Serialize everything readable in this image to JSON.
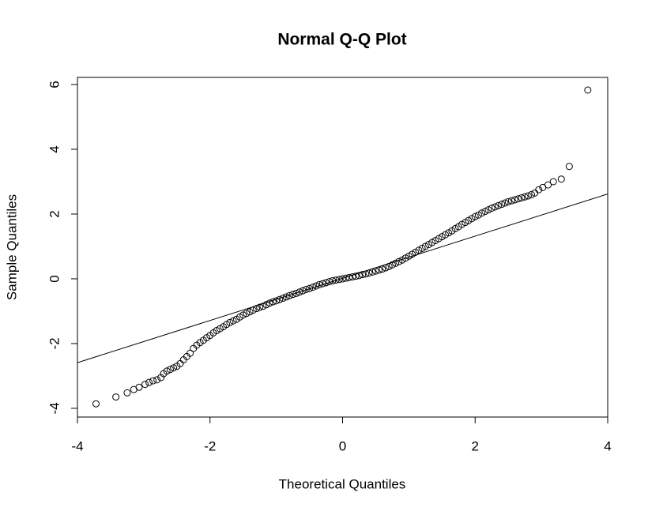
{
  "chart_data": {
    "type": "scatter",
    "title": "Normal Q-Q Plot",
    "x_label": "Theoretical Quantiles",
    "y_label": "Sample Quantiles",
    "xlim": [
      -4,
      4
    ],
    "ylim": [
      -4.27,
      6.22
    ],
    "xticks": [
      -4,
      -2,
      0,
      2,
      4
    ],
    "yticks": [
      -4,
      -2,
      0,
      2,
      4,
      6
    ],
    "color": "#000000",
    "x": [
      -3.72,
      -3.42,
      -3.25,
      -3.15,
      -3.07,
      -2.98,
      -2.92,
      -2.86,
      -2.8,
      -2.74,
      -2.7,
      -2.65,
      -2.6,
      -2.55,
      -2.5,
      -2.45,
      -2.4,
      -2.35,
      -2.3,
      -2.25,
      -2.2,
      -2.15,
      -2.1,
      -2.05,
      -2.0,
      -1.95,
      -1.9,
      -1.85,
      -1.8,
      -1.75,
      -1.7,
      -1.65,
      -1.6,
      -1.55,
      -1.5,
      -1.45,
      -1.4,
      -1.35,
      -1.3,
      -1.25,
      -1.2,
      -1.15,
      -1.1,
      -1.05,
      -1.0,
      -0.95,
      -0.9,
      -0.85,
      -0.8,
      -0.75,
      -0.7,
      -0.65,
      -0.6,
      -0.55,
      -0.5,
      -0.45,
      -0.4,
      -0.35,
      -0.3,
      -0.25,
      -0.2,
      -0.15,
      -0.1,
      -0.05,
      0,
      0.05,
      0.1,
      0.15,
      0.2,
      0.25,
      0.3,
      0.35,
      0.4,
      0.45,
      0.5,
      0.55,
      0.6,
      0.65,
      0.7,
      0.75,
      0.8,
      0.85,
      0.9,
      0.95,
      1.0,
      1.05,
      1.1,
      1.15,
      1.2,
      1.25,
      1.3,
      1.35,
      1.4,
      1.45,
      1.5,
      1.55,
      1.6,
      1.65,
      1.7,
      1.75,
      1.8,
      1.85,
      1.9,
      1.95,
      2.0,
      2.05,
      2.1,
      2.15,
      2.2,
      2.25,
      2.3,
      2.35,
      2.4,
      2.45,
      2.5,
      2.55,
      2.6,
      2.65,
      2.7,
      2.75,
      2.8,
      2.85,
      2.9,
      2.96,
      3.02,
      3.1,
      3.18,
      3.3,
      3.42,
      3.7
    ],
    "y": [
      -3.86,
      -3.65,
      -3.52,
      -3.42,
      -3.35,
      -3.26,
      -3.2,
      -3.15,
      -3.12,
      -3.05,
      -2.93,
      -2.85,
      -2.8,
      -2.75,
      -2.7,
      -2.62,
      -2.5,
      -2.4,
      -2.3,
      -2.15,
      -2.05,
      -1.97,
      -1.9,
      -1.82,
      -1.75,
      -1.67,
      -1.6,
      -1.54,
      -1.48,
      -1.41,
      -1.35,
      -1.3,
      -1.25,
      -1.18,
      -1.12,
      -1.07,
      -1.02,
      -0.97,
      -0.92,
      -0.88,
      -0.85,
      -0.8,
      -0.75,
      -0.71,
      -0.68,
      -0.64,
      -0.6,
      -0.56,
      -0.52,
      -0.48,
      -0.45,
      -0.41,
      -0.37,
      -0.33,
      -0.3,
      -0.26,
      -0.22,
      -0.18,
      -0.15,
      -0.12,
      -0.09,
      -0.06,
      -0.04,
      -0.02,
      0,
      0.02,
      0.04,
      0.06,
      0.08,
      0.1,
      0.13,
      0.15,
      0.18,
      0.21,
      0.24,
      0.27,
      0.3,
      0.34,
      0.38,
      0.43,
      0.48,
      0.53,
      0.58,
      0.64,
      0.7,
      0.76,
      0.82,
      0.88,
      0.94,
      1.0,
      1.06,
      1.12,
      1.18,
      1.24,
      1.3,
      1.36,
      1.42,
      1.48,
      1.55,
      1.61,
      1.68,
      1.74,
      1.8,
      1.86,
      1.92,
      1.97,
      2.03,
      2.08,
      2.13,
      2.18,
      2.22,
      2.26,
      2.3,
      2.34,
      2.38,
      2.41,
      2.44,
      2.47,
      2.5,
      2.53,
      2.56,
      2.6,
      2.65,
      2.75,
      2.82,
      2.9,
      3.0,
      3.08,
      3.47,
      5.83
    ],
    "reference_line": {
      "x": [
        -4,
        4
      ],
      "y": [
        -2.59,
        2.62
      ]
    }
  }
}
